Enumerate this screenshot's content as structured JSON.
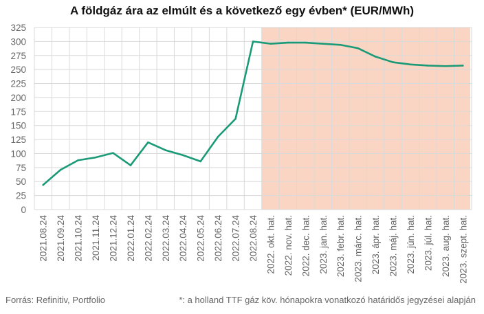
{
  "colors": {
    "line": "#1a9a76",
    "forecast_band": "#fad5c3",
    "grid": "#d9d9d9",
    "text": "#666666"
  },
  "footer": {
    "source": "Forrás: Refinitiv, Portfolio",
    "note": "*: a holland TTF gáz köv. hónapokra vonatkozó határidős jegyzései alapján"
  },
  "chart_data": {
    "type": "line",
    "title": "A földgáz ára az elmúlt és a következő egy évben* (EUR/MWh)",
    "xlabel": "",
    "ylabel": "",
    "ylim": [
      0,
      325
    ],
    "yticks": [
      0,
      25,
      50,
      75,
      100,
      125,
      150,
      175,
      200,
      225,
      250,
      275,
      300,
      325
    ],
    "grid": true,
    "categories": [
      "2021.08.24",
      "2021.09.24",
      "2021.10.24",
      "2021.11.24",
      "2021.12.24",
      "2022.01.24",
      "2022.02.24",
      "2022.03.24",
      "2022.04.24",
      "2022.05.24",
      "2022.06.24",
      "2022.07.24",
      "2022.08.24",
      "2022. okt. hat.",
      "2022. nov. hat.",
      "2022. dec. hat.",
      "2023. jan. hat.",
      "2023. febr. hat.",
      "2023. márc. hat.",
      "2023. ápr. hat.",
      "2023. máj. hat.",
      "2023. jún. hat.",
      "2023. júl. hat.",
      "2023. aug. hat.",
      "2023. szept. hat."
    ],
    "series": [
      {
        "values": [
          44,
          71,
          88,
          93,
          101,
          79,
          120,
          106,
          97,
          86,
          130,
          162,
          300,
          296,
          298,
          298,
          296,
          294,
          288,
          273,
          263,
          259,
          257,
          256,
          257
        ]
      }
    ],
    "forecast_start_category": "2022. okt. hat.",
    "forecast_end_category": "2023. szept. hat."
  }
}
